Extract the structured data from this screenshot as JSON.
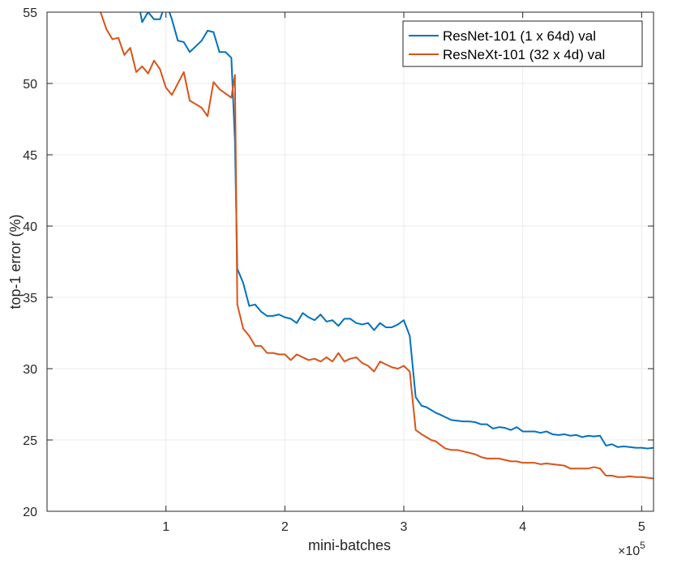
{
  "chart_data": {
    "type": "line",
    "xlabel": "mini-batches",
    "ylabel": "top-1 error (%)",
    "x_multiplier": "×10",
    "x_multiplier_exponent": "5",
    "xlim": [
      0,
      5.1
    ],
    "ylim": [
      20,
      55
    ],
    "xticks": [
      1,
      2,
      3,
      4,
      5
    ],
    "yticks": [
      20,
      25,
      30,
      35,
      40,
      45,
      50,
      55
    ],
    "grid": true,
    "legend_position": "top-right",
    "series": [
      {
        "name": "ResNet-101 (1 x 64d) val",
        "color": "#0072bd",
        "x": [
          0.75,
          0.8,
          0.85,
          0.9,
          0.95,
          1.0,
          1.05,
          1.1,
          1.15,
          1.2,
          1.3,
          1.35,
          1.4,
          1.45,
          1.5,
          1.55,
          1.58,
          1.6,
          1.65,
          1.7,
          1.75,
          1.8,
          1.85,
          1.9,
          1.95,
          2.0,
          2.05,
          2.1,
          2.15,
          2.2,
          2.25,
          2.3,
          2.35,
          2.4,
          2.45,
          2.5,
          2.55,
          2.6,
          2.65,
          2.7,
          2.75,
          2.8,
          2.85,
          2.9,
          2.95,
          3.0,
          3.05,
          3.1,
          3.15,
          3.19,
          3.23,
          3.27,
          3.3,
          3.35,
          3.4,
          3.45,
          3.5,
          3.55,
          3.6,
          3.65,
          3.7,
          3.75,
          3.8,
          3.85,
          3.9,
          3.95,
          4.0,
          4.05,
          4.1,
          4.15,
          4.2,
          4.25,
          4.3,
          4.35,
          4.4,
          4.45,
          4.5,
          4.55,
          4.6,
          4.65,
          4.7,
          4.75,
          4.8,
          4.85,
          4.9,
          4.95,
          5.0,
          5.05,
          5.1
        ],
        "values": [
          56.5,
          54.3,
          55.0,
          54.5,
          54.5,
          55.7,
          54.5,
          53.0,
          52.9,
          52.2,
          53.0,
          53.7,
          53.6,
          52.2,
          52.2,
          51.8,
          46.0,
          37.0,
          36.0,
          34.4,
          34.5,
          34.0,
          33.7,
          33.7,
          33.8,
          33.6,
          33.5,
          33.2,
          33.9,
          33.6,
          33.4,
          33.8,
          33.3,
          33.4,
          33.0,
          33.5,
          33.5,
          33.2,
          33.1,
          33.2,
          32.7,
          33.2,
          32.9,
          32.9,
          33.1,
          33.4,
          32.3,
          28.0,
          27.4,
          27.3,
          27.1,
          26.9,
          26.8,
          26.6,
          26.4,
          26.35,
          26.3,
          26.3,
          26.25,
          26.1,
          26.1,
          25.8,
          25.9,
          25.85,
          25.7,
          25.9,
          25.6,
          25.6,
          25.6,
          25.5,
          25.6,
          25.4,
          25.35,
          25.4,
          25.3,
          25.35,
          25.2,
          25.3,
          25.25,
          25.3,
          24.6,
          24.7,
          24.5,
          24.55,
          24.5,
          24.45,
          24.45,
          24.4,
          24.45
        ]
      },
      {
        "name": "ResNeXt-101 (32 x 4d) val",
        "color": "#d95319",
        "x": [
          0.45,
          0.5,
          0.55,
          0.6,
          0.65,
          0.7,
          0.75,
          0.8,
          0.85,
          0.9,
          0.95,
          1.0,
          1.05,
          1.15,
          1.2,
          1.3,
          1.35,
          1.4,
          1.45,
          1.55,
          1.58,
          1.6,
          1.65,
          1.7,
          1.75,
          1.8,
          1.85,
          1.9,
          1.95,
          2.0,
          2.05,
          2.1,
          2.15,
          2.2,
          2.25,
          2.3,
          2.35,
          2.4,
          2.45,
          2.5,
          2.55,
          2.6,
          2.65,
          2.7,
          2.75,
          2.8,
          2.85,
          2.9,
          2.95,
          3.0,
          3.05,
          3.1,
          3.15,
          3.19,
          3.23,
          3.27,
          3.3,
          3.35,
          3.4,
          3.45,
          3.5,
          3.55,
          3.6,
          3.65,
          3.7,
          3.75,
          3.8,
          3.85,
          3.9,
          3.95,
          4.0,
          4.05,
          4.1,
          4.15,
          4.2,
          4.25,
          4.3,
          4.35,
          4.4,
          4.45,
          4.5,
          4.55,
          4.6,
          4.65,
          4.7,
          4.75,
          4.8,
          4.85,
          4.9,
          4.95,
          5.0,
          5.05,
          5.1
        ],
        "values": [
          55.0,
          53.8,
          53.1,
          53.2,
          52.0,
          52.5,
          50.8,
          51.2,
          50.7,
          51.6,
          51.0,
          49.7,
          49.2,
          50.8,
          48.8,
          48.3,
          47.7,
          50.1,
          49.6,
          49.0,
          50.6,
          34.5,
          32.8,
          32.3,
          31.6,
          31.6,
          31.1,
          31.1,
          31.0,
          31.0,
          30.6,
          31.0,
          30.8,
          30.6,
          30.7,
          30.5,
          30.8,
          30.5,
          31.1,
          30.5,
          30.7,
          30.8,
          30.4,
          30.2,
          29.8,
          30.5,
          30.3,
          30.1,
          30.0,
          30.2,
          29.8,
          25.7,
          25.4,
          25.2,
          25.0,
          24.9,
          24.7,
          24.4,
          24.3,
          24.3,
          24.2,
          24.1,
          24.0,
          23.8,
          23.7,
          23.7,
          23.7,
          23.6,
          23.5,
          23.5,
          23.4,
          23.4,
          23.4,
          23.3,
          23.35,
          23.3,
          23.25,
          23.2,
          23.0,
          23.0,
          23.0,
          23.0,
          23.1,
          23.0,
          22.5,
          22.5,
          22.4,
          22.4,
          22.45,
          22.4,
          22.4,
          22.35,
          22.3
        ]
      }
    ]
  }
}
